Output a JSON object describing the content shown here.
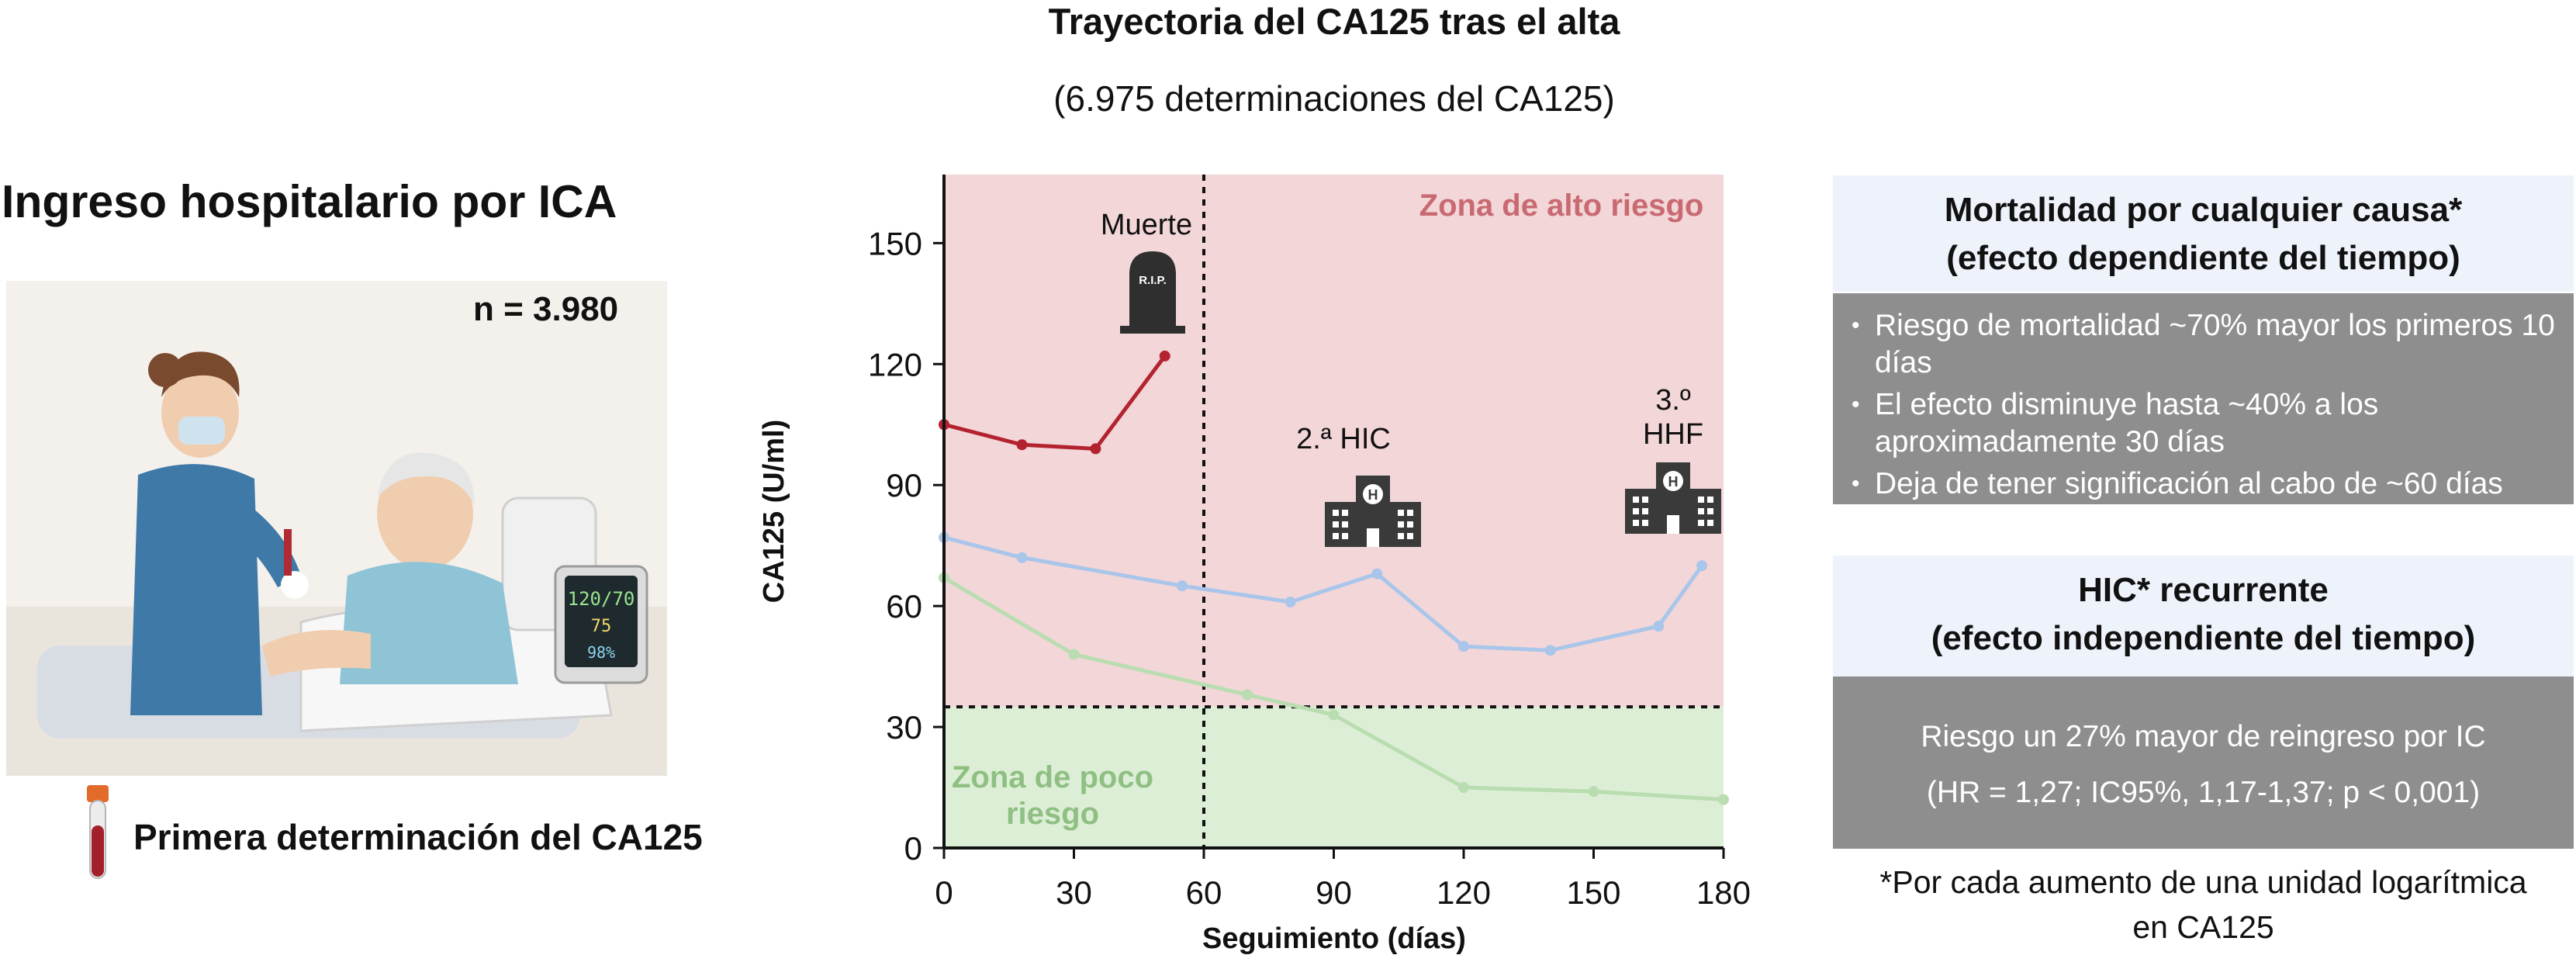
{
  "header": {
    "title": "Trayectoria del CA125 tras el alta",
    "subtitle": "(6.975 determinaciones del CA125)"
  },
  "left_panel": {
    "heading": "Ingreso hospitalario por ICA",
    "n_label": "n = 3.980",
    "first_measure": "Primera determinación del CA125",
    "monitor": {
      "bp": "120/70",
      "hr": "75",
      "spo2": "98%"
    }
  },
  "chart_data": {
    "type": "line",
    "xlabel": "Seguimiento (días)",
    "ylabel": "CA125 (U/ml)",
    "xlim": [
      0,
      180
    ],
    "ylim": [
      0,
      167
    ],
    "x_ticks": [
      0,
      30,
      60,
      90,
      120,
      150,
      180
    ],
    "y_ticks": [
      0,
      30,
      60,
      90,
      120,
      150
    ],
    "threshold_y": 35,
    "vline_x": 60,
    "zones": {
      "high": {
        "label": "Zona de alto riesgo",
        "color": "#f2d6d8",
        "text_color": "#c96a72"
      },
      "low": {
        "label_line1": "Zona de poco",
        "label_line2": "riesgo",
        "color": "#dcefd6",
        "text_color": "#8fbf83"
      }
    },
    "series": [
      {
        "color": "#b3232f",
        "points": [
          [
            0,
            105
          ],
          [
            18,
            100
          ],
          [
            35,
            99
          ],
          [
            51,
            122
          ]
        ]
      },
      {
        "color": "#a9c6ea",
        "points": [
          [
            0,
            77
          ],
          [
            18,
            72
          ],
          [
            55,
            65
          ],
          [
            80,
            61
          ],
          [
            100,
            68
          ],
          [
            120,
            50
          ],
          [
            140,
            49
          ],
          [
            165,
            55
          ],
          [
            175,
            70
          ]
        ]
      },
      {
        "color": "#b9ddb0",
        "points": [
          [
            0,
            67
          ],
          [
            30,
            48
          ],
          [
            70,
            38
          ],
          [
            90,
            33
          ],
          [
            120,
            15
          ],
          [
            150,
            14
          ],
          [
            180,
            12
          ]
        ]
      }
    ],
    "annotations": {
      "death_label": "Muerte",
      "death_icon_text": "R.I.P.",
      "second_label": "2.ª HIC",
      "third_label_line1": "3.º",
      "third_label_line2": "HHF"
    }
  },
  "right_panel": {
    "mortality": {
      "head_line1": "Mortalidad por cualquier causa*",
      "head_line2": "(efecto dependiente del tiempo)",
      "bullets": [
        "Riesgo de mortalidad ~70% mayor los primeros 10 días",
        "El efecto disminuye hasta ~40% a los aproximadamente 30 días",
        "Deja de tener significación al cabo de ~60 días"
      ]
    },
    "hic": {
      "head_line1": "HIC* recurrente",
      "head_line2": "(efecto independiente del tiempo)",
      "line1": "Riesgo un 27% mayor de reingreso por IC",
      "line2": "(HR = 1,27; IC95%, 1,17-1,37; p < 0,001)"
    },
    "footnote_line1": "*Por cada aumento de una unidad logarítmica",
    "footnote_line2": "en CA125"
  }
}
